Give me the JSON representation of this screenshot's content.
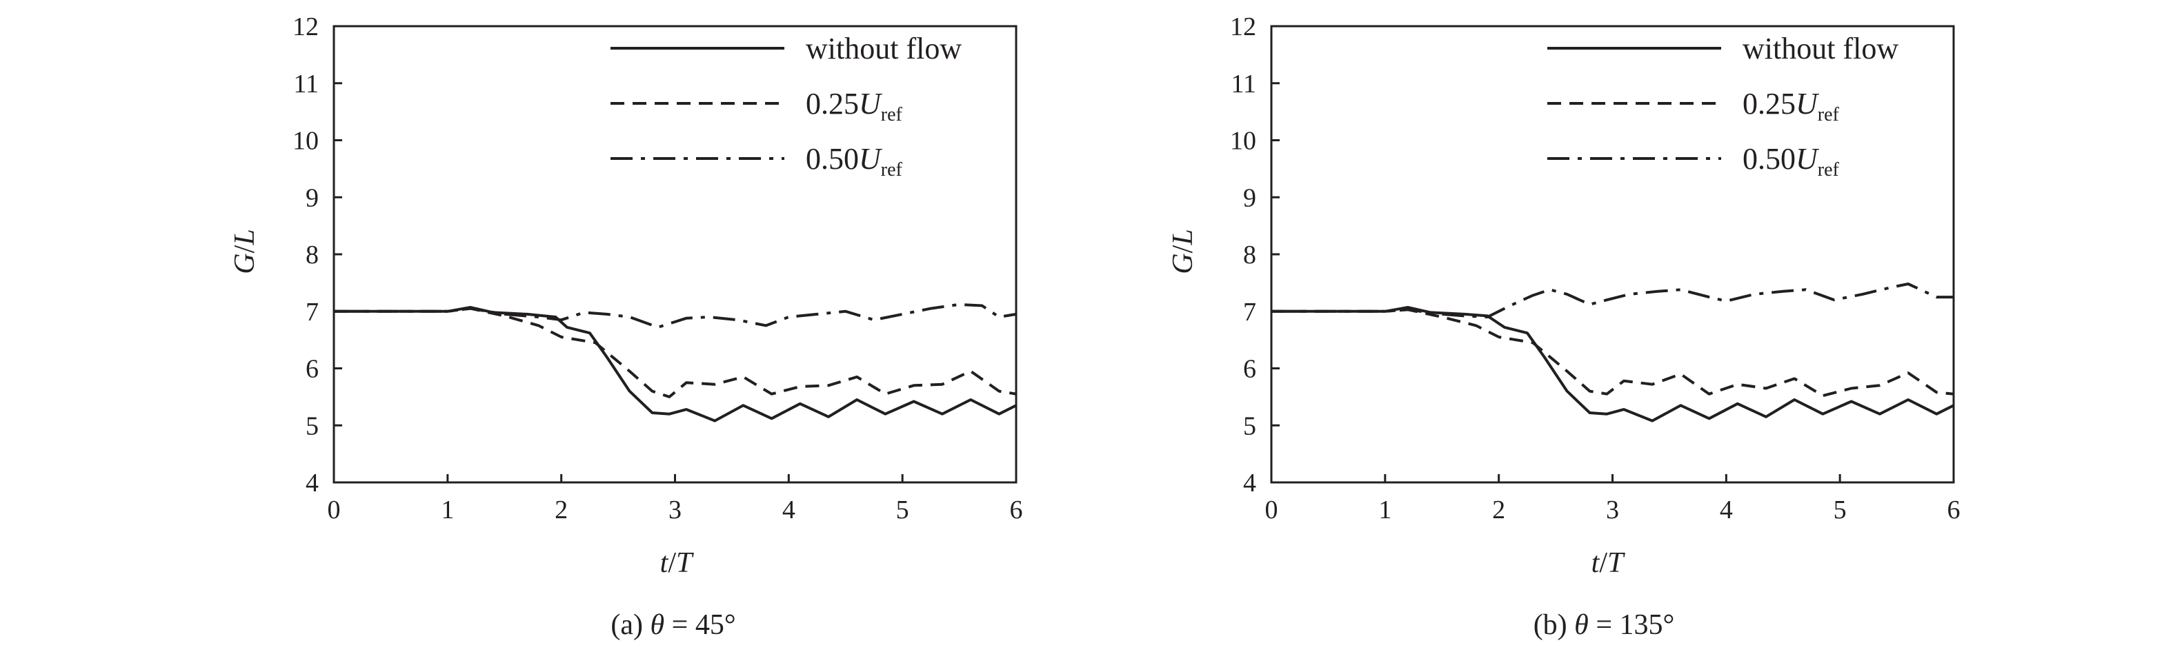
{
  "chart_data": [
    {
      "type": "line",
      "caption": "(a) θ = 45°",
      "caption_parts": {
        "prefix": "(a) ",
        "var": "θ",
        "suffix": " = 45°"
      },
      "xlabel": {
        "a": "t",
        "b": "/",
        "c": "T"
      },
      "ylabel": {
        "a": "G",
        "b": "/",
        "c": "L"
      },
      "xlim": [
        0,
        6
      ],
      "ylim": [
        4,
        12
      ],
      "xticks": [
        0,
        1,
        2,
        3,
        4,
        5,
        6
      ],
      "yticks": [
        4,
        5,
        6,
        7,
        8,
        9,
        10,
        11,
        12
      ],
      "grid": false,
      "legend_position": "top-right",
      "series": [
        {
          "name": "without flow",
          "legend": {
            "main": "without flow",
            "sub": ""
          },
          "style": "solid",
          "x": [
            0,
            0.5,
            1,
            1.2,
            1.4,
            1.7,
            1.95,
            2.05,
            2.25,
            2.4,
            2.6,
            2.8,
            2.95,
            3.1,
            3.35,
            3.6,
            3.85,
            4.1,
            4.35,
            4.6,
            4.85,
            5.1,
            5.35,
            5.6,
            5.85,
            6
          ],
          "y": [
            7,
            7,
            7,
            7.07,
            6.98,
            6.95,
            6.9,
            6.72,
            6.62,
            6.2,
            5.6,
            5.22,
            5.2,
            5.28,
            5.08,
            5.35,
            5.12,
            5.38,
            5.15,
            5.45,
            5.2,
            5.42,
            5.2,
            5.45,
            5.2,
            5.35
          ]
        },
        {
          "name": "0.25Uref",
          "legend": {
            "main": "0.25",
            "sub": "ref"
          },
          "style": "dashed",
          "x": [
            0,
            0.5,
            1,
            1.2,
            1.5,
            1.8,
            2.0,
            2.3,
            2.6,
            2.8,
            2.95,
            3.1,
            3.35,
            3.6,
            3.85,
            4.1,
            4.35,
            4.6,
            4.85,
            5.1,
            5.35,
            5.6,
            5.85,
            6
          ],
          "y": [
            7,
            7,
            7,
            7.05,
            6.92,
            6.75,
            6.55,
            6.45,
            5.95,
            5.6,
            5.5,
            5.75,
            5.72,
            5.85,
            5.55,
            5.68,
            5.7,
            5.85,
            5.55,
            5.7,
            5.72,
            5.95,
            5.6,
            5.55
          ]
        },
        {
          "name": "0.50Uref",
          "legend": {
            "main": "0.50",
            "sub": "ref"
          },
          "style": "dashdot",
          "x": [
            0,
            0.5,
            1,
            1.2,
            1.5,
            1.8,
            2.0,
            2.2,
            2.4,
            2.6,
            2.85,
            3.1,
            3.3,
            3.55,
            3.8,
            4.0,
            4.25,
            4.5,
            4.75,
            5.0,
            5.25,
            5.5,
            5.7,
            5.85,
            6
          ],
          "y": [
            7,
            7,
            7,
            7.05,
            6.95,
            6.9,
            6.85,
            6.98,
            6.95,
            6.9,
            6.72,
            6.88,
            6.9,
            6.85,
            6.75,
            6.9,
            6.95,
            7.0,
            6.85,
            6.95,
            7.05,
            7.12,
            7.1,
            6.9,
            6.95
          ]
        }
      ]
    },
    {
      "type": "line",
      "caption": "(b) θ = 135°",
      "caption_parts": {
        "prefix": "(b) ",
        "var": "θ",
        "suffix": " = 135°"
      },
      "xlabel": {
        "a": "t",
        "b": "/",
        "c": "T"
      },
      "ylabel": {
        "a": "G",
        "b": "/",
        "c": "L"
      },
      "xlim": [
        0,
        6
      ],
      "ylim": [
        4,
        12
      ],
      "xticks": [
        0,
        1,
        2,
        3,
        4,
        5,
        6
      ],
      "yticks": [
        4,
        5,
        6,
        7,
        8,
        9,
        10,
        11,
        12
      ],
      "grid": false,
      "legend_position": "top-right",
      "series": [
        {
          "name": "without flow",
          "legend": {
            "main": "without flow",
            "sub": ""
          },
          "style": "solid",
          "x": [
            0,
            0.5,
            1,
            1.2,
            1.4,
            1.7,
            1.9,
            2.05,
            2.25,
            2.4,
            2.6,
            2.8,
            2.95,
            3.1,
            3.35,
            3.6,
            3.85,
            4.1,
            4.35,
            4.6,
            4.85,
            5.1,
            5.35,
            5.6,
            5.85,
            6
          ],
          "y": [
            7,
            7,
            7,
            7.07,
            6.98,
            6.95,
            6.92,
            6.72,
            6.62,
            6.2,
            5.6,
            5.22,
            5.2,
            5.28,
            5.08,
            5.35,
            5.12,
            5.38,
            5.15,
            5.45,
            5.2,
            5.42,
            5.2,
            5.45,
            5.2,
            5.35
          ]
        },
        {
          "name": "0.25Uref",
          "legend": {
            "main": "0.25",
            "sub": "ref"
          },
          "style": "dashed",
          "x": [
            0,
            0.5,
            1,
            1.2,
            1.5,
            1.8,
            2.0,
            2.3,
            2.6,
            2.8,
            2.95,
            3.1,
            3.35,
            3.6,
            3.85,
            4.1,
            4.35,
            4.6,
            4.85,
            5.1,
            5.35,
            5.6,
            5.85,
            6
          ],
          "y": [
            7,
            7,
            7,
            7.03,
            6.9,
            6.75,
            6.55,
            6.45,
            5.95,
            5.6,
            5.55,
            5.78,
            5.72,
            5.9,
            5.55,
            5.72,
            5.65,
            5.82,
            5.52,
            5.65,
            5.7,
            5.92,
            5.58,
            5.55
          ]
        },
        {
          "name": "0.50Uref",
          "legend": {
            "main": "0.50",
            "sub": "ref"
          },
          "style": "dashdot",
          "x": [
            0,
            0.5,
            1,
            1.2,
            1.5,
            1.7,
            1.9,
            2.1,
            2.3,
            2.45,
            2.6,
            2.8,
            2.95,
            3.15,
            3.4,
            3.6,
            3.85,
            4.0,
            4.25,
            4.5,
            4.7,
            4.95,
            5.2,
            5.45,
            5.6,
            5.85,
            6
          ],
          "y": [
            7,
            7,
            7,
            7.03,
            6.95,
            6.92,
            6.9,
            7.1,
            7.28,
            7.38,
            7.3,
            7.12,
            7.2,
            7.3,
            7.35,
            7.38,
            7.25,
            7.18,
            7.3,
            7.35,
            7.38,
            7.2,
            7.3,
            7.42,
            7.48,
            7.25,
            7.25
          ]
        }
      ]
    }
  ]
}
